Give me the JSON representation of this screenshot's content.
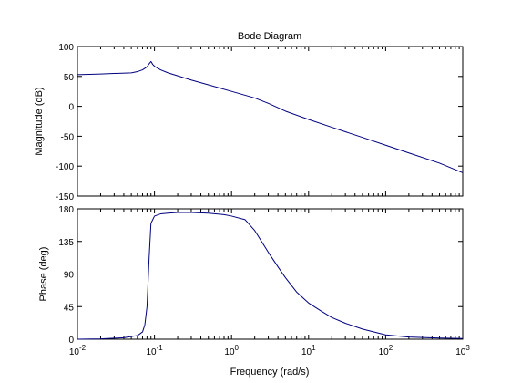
{
  "chart_data": {
    "type": "line",
    "title": "Bode Diagram",
    "xlabel": "Frequency  (rad/s)",
    "x_scale": "log",
    "xlim": [
      0.01,
      1000
    ],
    "x_ticks": [
      {
        "value": 0.01,
        "base": "10",
        "exp": "-2"
      },
      {
        "value": 0.1,
        "base": "10",
        "exp": "-1"
      },
      {
        "value": 1,
        "base": "10",
        "exp": "0"
      },
      {
        "value": 10,
        "base": "10",
        "exp": "1"
      },
      {
        "value": 100,
        "base": "10",
        "exp": "2"
      },
      {
        "value": 1000,
        "base": "10",
        "exp": "3"
      }
    ],
    "line_color": "#00007f",
    "panels": [
      {
        "ylabel": "Magnitude (dB)",
        "ylim": [
          -150,
          100
        ],
        "yticks": [
          "100",
          "50",
          "0",
          "-50",
          "-100",
          "-150"
        ],
        "ytick_values": [
          100,
          50,
          0,
          -50,
          -100,
          -150
        ],
        "series": [
          {
            "x": [
              0.01,
              0.02,
              0.03,
              0.05,
              0.06,
              0.07,
              0.08,
              0.085,
              0.09,
              0.095,
              0.1,
              0.12,
              0.15,
              0.2,
              0.3,
              0.5,
              1,
              2,
              3,
              5,
              10,
              20,
              50,
              100,
              200,
              500,
              1000
            ],
            "y": [
              53,
              54,
              55,
              56,
              58,
              61,
              66,
              71,
              75,
              70,
              67,
              61,
              56,
              51,
              44,
              36,
              25,
              14,
              5,
              -8,
              -22,
              -35,
              -52,
              -65,
              -78,
              -95,
              -111
            ]
          }
        ]
      },
      {
        "ylabel": "Phase (deg)",
        "ylim": [
          0,
          180
        ],
        "yticks": [
          "180",
          "135",
          "90",
          "45",
          "0"
        ],
        "ytick_values": [
          180,
          135,
          90,
          45,
          0
        ],
        "series": [
          {
            "x": [
              0.01,
              0.02,
              0.04,
              0.06,
              0.07,
              0.075,
              0.08,
              0.085,
              0.09,
              0.1,
              0.12,
              0.15,
              0.2,
              0.3,
              0.5,
              0.8,
              1,
              1.5,
              2,
              3,
              4,
              5,
              7,
              10,
              15,
              20,
              30,
              50,
              100,
              200,
              500,
              1000
            ],
            "y": [
              0,
              0.5,
              2,
              5,
              10,
              20,
              45,
              110,
              160,
              170,
              173,
              174,
              175,
              175,
              174,
              172,
              170,
              165,
              150,
              120,
              100,
              85,
              65,
              50,
              38,
              30,
              22,
              14,
              6,
              3,
              1.5,
              1
            ]
          }
        ]
      }
    ]
  }
}
